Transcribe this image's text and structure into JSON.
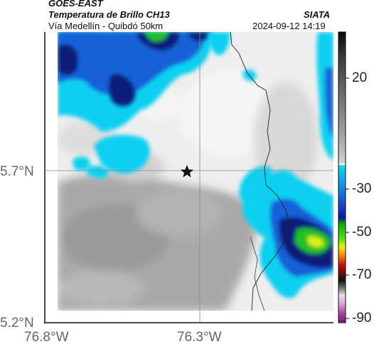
{
  "header": {
    "source": "GOES-EAST",
    "product": "Temperatura de Brillo CH13",
    "route": "Vía Medellín - Quibdó 50km",
    "brand": "SIATA",
    "datetime": "2024-09-12 14:19"
  },
  "map": {
    "lat_ticks": [
      "5.7°N",
      "5.2°N"
    ],
    "lon_ticks": [
      "76.8°W",
      "76.3°W"
    ],
    "marker": "star",
    "colors": {
      "clear": "#eeeeee",
      "warm_gray": "#a8a8a8",
      "cold_cyan": "#10d0f0",
      "cold_blue": "#1860d8",
      "deep_navy": "#0a1e78",
      "very_cold_green": "#20c020",
      "core_yellow": "#d8f020",
      "border_line": "#222222"
    }
  },
  "colorbar": {
    "labels": [
      "20",
      "-30",
      "-50",
      "-70",
      "-90"
    ]
  }
}
